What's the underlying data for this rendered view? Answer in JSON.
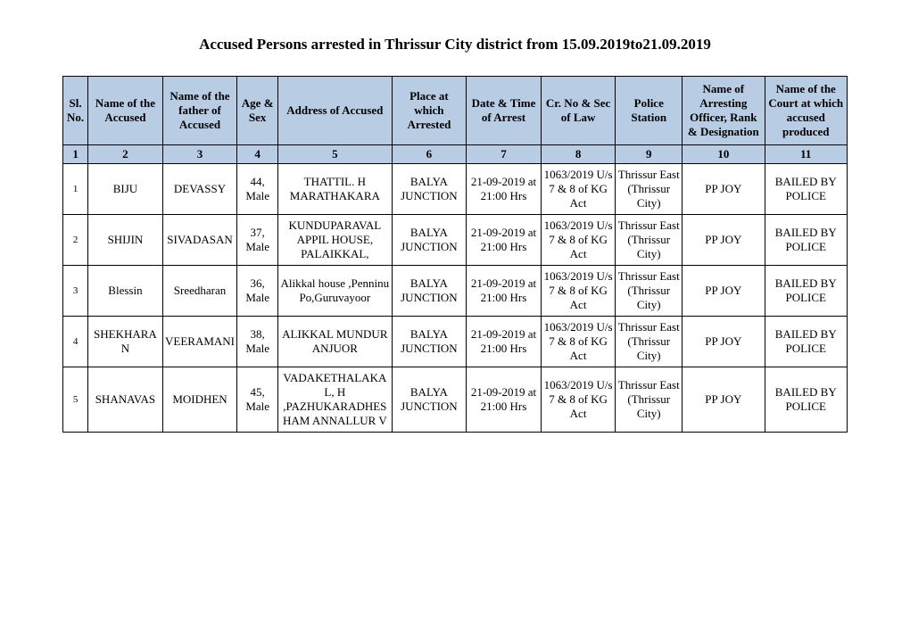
{
  "title": "Accused Persons arrested in   Thrissur City   district from  15.09.2019to21.09.2019",
  "headers": {
    "c1": "Sl. No.",
    "c2": "Name of the Accused",
    "c3": "Name of the father of Accused",
    "c4": "Age & Sex",
    "c5": "Address of Accused",
    "c6": "Place at which Arrested",
    "c7": "Date & Time of Arrest",
    "c8": "Cr. No & Sec of Law",
    "c9": "Police Station",
    "c10": "Name of Arresting Officer, Rank & Designation",
    "c11": "Name of the Court at which accused produced"
  },
  "numrow": {
    "n1": "1",
    "n2": "2",
    "n3": "3",
    "n4": "4",
    "n5": "5",
    "n6": "6",
    "n7": "7",
    "n8": "8",
    "n9": "9",
    "n10": "10",
    "n11": "11"
  },
  "rows": [
    {
      "sl": "1",
      "name": "BIJU",
      "father": "DEVASSY",
      "age": "44, Male",
      "addr": "THATTIL. H MARATHAKARA",
      "place": "BALYA JUNCTION",
      "date": "21-09-2019 at 21:00 Hrs",
      "cr": "1063/2019 U/s 7 & 8 of KG Act",
      "station": "Thrissur East (Thrissur City)",
      "officer": "PP JOY",
      "court": "BAILED BY POLICE"
    },
    {
      "sl": "2",
      "name": "SHIJIN",
      "father": "SIVADASAN",
      "age": "37, Male",
      "addr": "KUNDUPARAVAL APPIL HOUSE, PALAIKKAL,",
      "place": "BALYA JUNCTION",
      "date": "21-09-2019 at 21:00 Hrs",
      "cr": "1063/2019 U/s 7 & 8 of KG Act",
      "station": "Thrissur East (Thrissur City)",
      "officer": "PP JOY",
      "court": "BAILED BY POLICE"
    },
    {
      "sl": "3",
      "name": "Blessin",
      "father": "Sreedharan",
      "age": "36, Male",
      "addr": "Alikkal house ,Penninu Po,Guruvayoor",
      "place": "BALYA JUNCTION",
      "date": "21-09-2019 at 21:00 Hrs",
      "cr": "1063/2019 U/s 7 & 8 of KG Act",
      "station": "Thrissur East (Thrissur City)",
      "officer": "PP JOY",
      "court": "BAILED BY POLICE"
    },
    {
      "sl": "4",
      "name": "SHEKHARAN",
      "father": "VEERAMANI",
      "age": "38, Male",
      "addr": "ALIKKAL MUNDUR ANJUOR",
      "place": "BALYA JUNCTION",
      "date": "21-09-2019 at 21:00 Hrs",
      "cr": "1063/2019 U/s 7 & 8 of KG Act",
      "station": "Thrissur East (Thrissur City)",
      "officer": "PP JOY",
      "court": "BAILED BY POLICE"
    },
    {
      "sl": "5",
      "name": "SHANAVAS",
      "father": "MOIDHEN",
      "age": "45, Male",
      "addr": "VADAKETHALAKAL, H ,PAZHUKARADHESHAM ANNALLUR V",
      "place": "BALYA JUNCTION",
      "date": "21-09-2019 at 21:00 Hrs",
      "cr": "1063/2019 U/s 7 & 8 of KG Act",
      "station": "Thrissur East (Thrissur City)",
      "officer": "PP JOY",
      "court": "BAILED BY POLICE"
    }
  ]
}
